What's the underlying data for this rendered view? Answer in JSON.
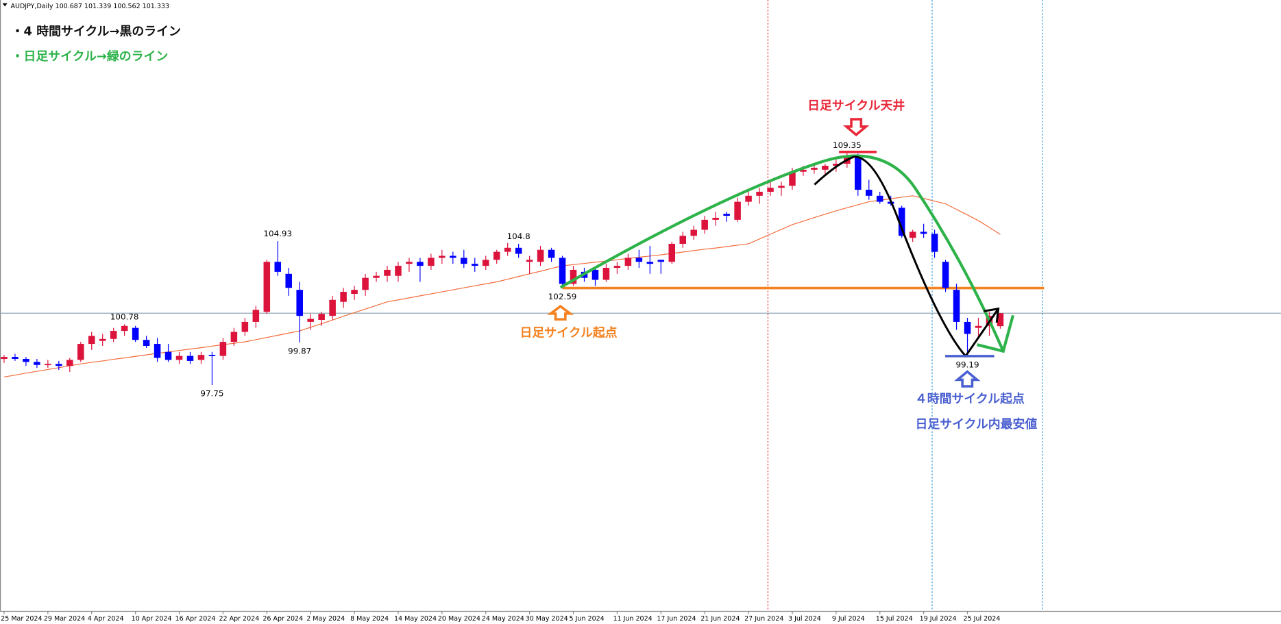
{
  "header": "AUDJPY,Daily 100.687 101.339 100.562 101.333",
  "chart_data": {
    "type": "candlestick",
    "categories": [
      "25 Mar 2024",
      null,
      null,
      null,
      "29 Mar 2024",
      null,
      null,
      null,
      "4 Apr 2024",
      null,
      null,
      null,
      "10 Apr 2024",
      null,
      null,
      null,
      "16 Apr 2024",
      null,
      null,
      null,
      "22 Apr 2024",
      null,
      null,
      null,
      "26 Apr 2024",
      null,
      null,
      null,
      "2 May 2024",
      null,
      null,
      null,
      "8 May 2024",
      null,
      null,
      null,
      "14 May 2024",
      null,
      null,
      null,
      "20 May 2024",
      null,
      null,
      null,
      "24 May 2024",
      null,
      null,
      null,
      "30 May 2024",
      null,
      null,
      null,
      "5 Jun 2024",
      null,
      null,
      null,
      "11 Jun 2024",
      null,
      null,
      null,
      "17 Jun 2024",
      null,
      null,
      null,
      "21 Jun 2024",
      null,
      null,
      null,
      "27 Jun 2024",
      null,
      null,
      null,
      "3 Jul 2024",
      null,
      null,
      null,
      "9 Jul 2024",
      null,
      null,
      null,
      "15 Jul 2024",
      null,
      null,
      null,
      "19 Jul 2024",
      null,
      null,
      null,
      "25 Jul 2024",
      null,
      null,
      null
    ],
    "open": [
      99.05,
      99.15,
      99.05,
      98.9,
      98.75,
      98.8,
      98.7,
      99.0,
      99.8,
      99.95,
      100.05,
      100.45,
      100.6,
      100.0,
      99.8,
      99.4,
      99.0,
      99.2,
      99.0,
      99.25,
      99.2,
      99.9,
      100.4,
      100.9,
      101.4,
      103.9,
      103.3,
      102.5,
      100.9,
      101.0,
      101.2,
      101.9,
      102.3,
      102.5,
      103.1,
      103.2,
      103.2,
      103.8,
      103.9,
      103.7,
      104.1,
      104.2,
      104.1,
      103.8,
      103.7,
      104.0,
      104.4,
      104.6,
      103.9,
      103.9,
      104.5,
      104.1,
      102.8,
      103.4,
      103.5,
      103.0,
      103.6,
      103.7,
      104.1,
      103.9,
      104.0,
      103.9,
      104.8,
      105.2,
      105.5,
      106.0,
      106.3,
      106.0,
      106.9,
      107.2,
      107.4,
      107.6,
      107.7,
      108.4,
      108.5,
      108.5,
      108.7,
      108.8,
      109.2,
      107.5,
      107.2,
      106.9,
      106.6,
      105.1,
      105.4,
      105.3,
      103.9,
      102.5,
      100.9,
      100.6,
      100.7,
      100.687
    ],
    "high": [
      99.25,
      99.3,
      99.15,
      99.05,
      99.0,
      98.95,
      99.1,
      99.9,
      100.4,
      100.3,
      100.6,
      100.78,
      100.7,
      100.2,
      100.1,
      99.8,
      99.4,
      99.4,
      99.4,
      99.4,
      100.1,
      100.6,
      101.1,
      101.7,
      104.0,
      104.93,
      103.6,
      102.9,
      101.3,
      101.4,
      102.2,
      102.6,
      102.7,
      103.3,
      103.4,
      103.7,
      103.9,
      104.1,
      104.1,
      104.3,
      104.5,
      104.4,
      104.5,
      104.1,
      104.2,
      104.5,
      104.84,
      104.8,
      104.2,
      104.7,
      104.6,
      104.2,
      103.7,
      103.6,
      103.6,
      103.8,
      103.9,
      104.3,
      104.5,
      104.7,
      104.0,
      104.9,
      105.4,
      105.7,
      106.2,
      106.4,
      106.4,
      107.1,
      107.5,
      107.6,
      107.9,
      107.9,
      108.6,
      108.7,
      108.8,
      108.8,
      109.0,
      109.35,
      109.3,
      108.0,
      107.4,
      107.2,
      106.7,
      105.5,
      105.8,
      105.5,
      104.0,
      102.8,
      101.1,
      101.1,
      101.4,
      101.339
    ],
    "low": [
      98.85,
      98.95,
      98.7,
      98.6,
      98.6,
      98.5,
      98.4,
      98.9,
      99.5,
      99.7,
      99.9,
      100.2,
      99.9,
      99.6,
      98.9,
      98.9,
      98.8,
      98.8,
      98.8,
      97.75,
      99.0,
      99.7,
      100.2,
      100.6,
      101.3,
      103.2,
      102.2,
      99.87,
      100.5,
      100.7,
      101.0,
      101.6,
      102.0,
      102.2,
      102.9,
      102.9,
      102.9,
      103.4,
      102.9,
      103.5,
      103.8,
      103.8,
      103.6,
      103.4,
      103.5,
      103.8,
      104.2,
      104.1,
      103.3,
      103.7,
      103.9,
      102.59,
      102.7,
      102.9,
      102.7,
      102.9,
      103.3,
      103.5,
      103.6,
      103.3,
      103.3,
      103.8,
      104.6,
      105.0,
      105.3,
      105.7,
      105.9,
      105.9,
      106.7,
      106.8,
      107.2,
      107.2,
      107.5,
      108.2,
      108.3,
      108.2,
      108.4,
      108.6,
      107.2,
      107.0,
      106.8,
      106.7,
      105.1,
      104.9,
      105.1,
      104.1,
      102.4,
      100.5,
      99.19,
      100.1,
      100.2,
      100.562
    ],
    "close": [
      99.15,
      99.05,
      98.9,
      98.75,
      98.8,
      98.7,
      99.0,
      99.8,
      100.2,
      100.05,
      100.45,
      100.7,
      100.0,
      99.7,
      99.1,
      99.0,
      99.2,
      98.95,
      99.25,
      99.2,
      99.9,
      100.4,
      100.9,
      101.5,
      103.9,
      103.4,
      102.6,
      101.2,
      101.05,
      101.3,
      102.0,
      102.4,
      102.5,
      103.1,
      103.2,
      103.5,
      103.7,
      103.9,
      103.7,
      104.1,
      104.2,
      104.1,
      103.8,
      103.7,
      104.0,
      104.4,
      104.6,
      104.3,
      104.0,
      104.5,
      104.1,
      102.8,
      103.5,
      103.1,
      103.0,
      103.6,
      103.7,
      104.1,
      103.9,
      103.8,
      103.9,
      104.8,
      105.2,
      105.5,
      106.0,
      106.1,
      106.2,
      106.9,
      107.2,
      107.4,
      107.6,
      107.7,
      108.4,
      108.5,
      108.6,
      108.7,
      108.8,
      109.2,
      107.5,
      107.2,
      106.9,
      106.8,
      105.2,
      105.4,
      105.3,
      104.4,
      102.6,
      100.9,
      100.3,
      100.7,
      101.2,
      101.333
    ],
    "up_color": "#dc143c",
    "down_color": "#0000ff",
    "moving_average": {
      "color": "#f26b3a",
      "values": [
        98.15,
        98.24,
        98.34,
        98.43,
        98.52,
        98.61,
        98.71,
        98.8,
        98.88,
        98.95,
        99.03,
        99.1,
        99.18,
        99.25,
        99.33,
        99.4,
        99.47,
        99.54,
        99.61,
        99.69,
        99.76,
        99.83,
        99.9,
        100.01,
        100.12,
        100.23,
        100.34,
        100.45,
        100.63,
        100.81,
        100.99,
        101.18,
        101.36,
        101.54,
        101.72,
        101.9,
        102.0,
        102.1,
        102.2,
        102.3,
        102.4,
        102.5,
        102.6,
        102.7,
        102.8,
        102.9,
        103.03,
        103.17,
        103.3,
        103.43,
        103.57,
        103.7,
        103.76,
        103.82,
        103.88,
        103.94,
        104.0,
        104.07,
        104.13,
        104.19,
        104.25,
        104.32,
        104.39,
        104.46,
        104.53,
        104.59,
        104.66,
        104.73,
        104.8,
        105.04,
        105.28,
        105.52,
        105.76,
        105.93,
        106.11,
        106.28,
        106.45,
        106.6,
        106.75,
        106.9,
        106.98,
        107.05,
        107.13,
        107.2,
        107.07,
        106.93,
        106.8,
        106.52,
        106.24,
        105.96,
        105.62,
        105.27
      ]
    },
    "ylim": [
      86.46,
      116.98
    ],
    "notes": {
      "legend_black": "・4 時間サイクル→黒のライン",
      "legend_green": "・日足サイクル→緑のライン",
      "daily_top": "日足サイクル天井",
      "daily_start": "日足サイクル起点",
      "h4_start": "４時間サイクル起点",
      "daily_lowest": "日足サイクル内最安値"
    }
  }
}
